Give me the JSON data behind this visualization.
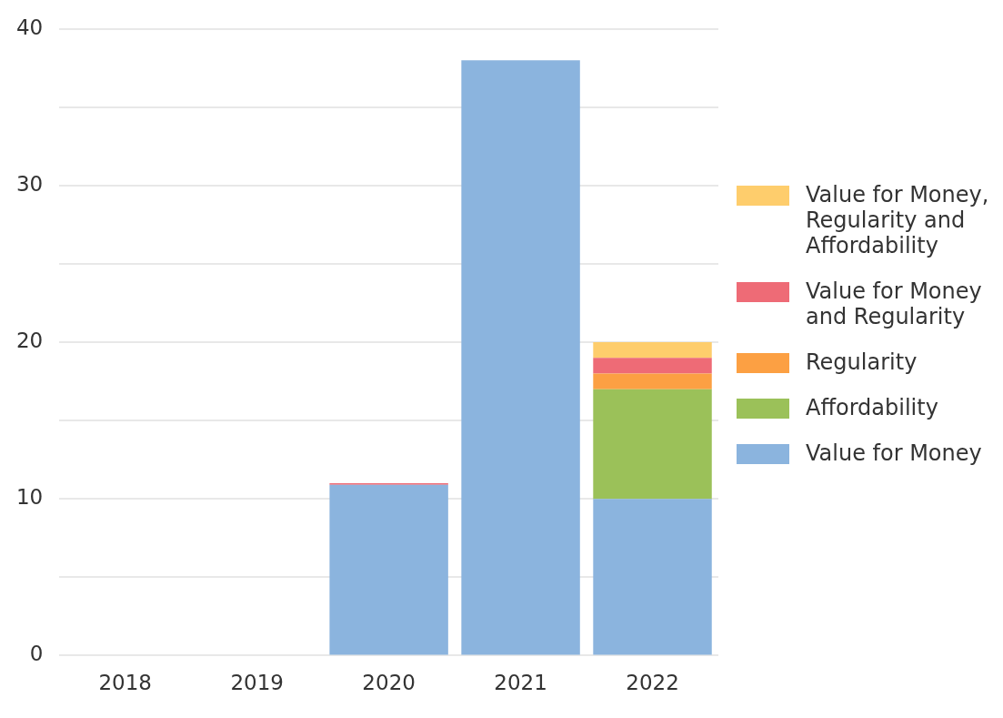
{
  "chart_data": {
    "type": "bar",
    "stacked": true,
    "categories": [
      "2018",
      "2019",
      "2020",
      "2021",
      "2022"
    ],
    "series": [
      {
        "name": "Value for Money",
        "color": "#8bb4de",
        "values": [
          0,
          0,
          10.9,
          38,
          10
        ]
      },
      {
        "name": "Affordability",
        "color": "#9bc159",
        "values": [
          0,
          0,
          0,
          0,
          7
        ]
      },
      {
        "name": "Regularity",
        "color": "#fca043",
        "values": [
          0,
          0,
          0,
          0,
          1
        ]
      },
      {
        "name": "Value for Money and Regularity",
        "color": "#ee6b76",
        "values": [
          0,
          0,
          0.1,
          0,
          1
        ]
      },
      {
        "name": "Value for Money, Regularity and Affordability",
        "color": "#fecd6c",
        "values": [
          0,
          0,
          0,
          0,
          1
        ]
      }
    ],
    "ylim": [
      0,
      40
    ],
    "yticks": [
      0,
      {
        "value": 5,
        "label": null
      },
      10,
      {
        "value": 15,
        "label": null
      },
      20,
      {
        "value": 25,
        "label": null
      },
      30,
      {
        "value": 35,
        "label": null
      },
      40
    ],
    "grid": "y",
    "legend": "right"
  }
}
